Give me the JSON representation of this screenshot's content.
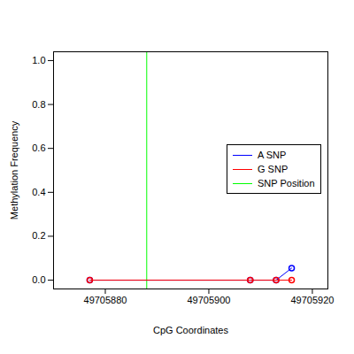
{
  "chart_data": {
    "type": "line",
    "xlabel": "CpG Coordinates",
    "ylabel": "Methylation Frequency",
    "x": [
      49705877,
      49705908,
      49705913,
      49705916
    ],
    "series": [
      {
        "name": "A SNP",
        "color": "#0000ff",
        "marker": "circle",
        "values": [
          0,
          0,
          0,
          0.055
        ]
      },
      {
        "name": "G SNP",
        "color": "#ff0000",
        "marker": "circle",
        "values": [
          0,
          0,
          0,
          0
        ]
      }
    ],
    "snp_position": {
      "name": "SNP Position",
      "color": "#00ff00",
      "value": 49705888
    },
    "xlim": [
      49705870,
      49705923
    ],
    "xticks": [
      49705880,
      49705900,
      49705920
    ],
    "ylim": [
      -0.04,
      1.04
    ],
    "yticks": [
      {
        "value": 0,
        "label": "0.0"
      },
      0.2,
      0.4,
      0.6,
      0.8,
      {
        "value": 1,
        "label": "1.0"
      }
    ],
    "legend": "right",
    "grid": false
  }
}
